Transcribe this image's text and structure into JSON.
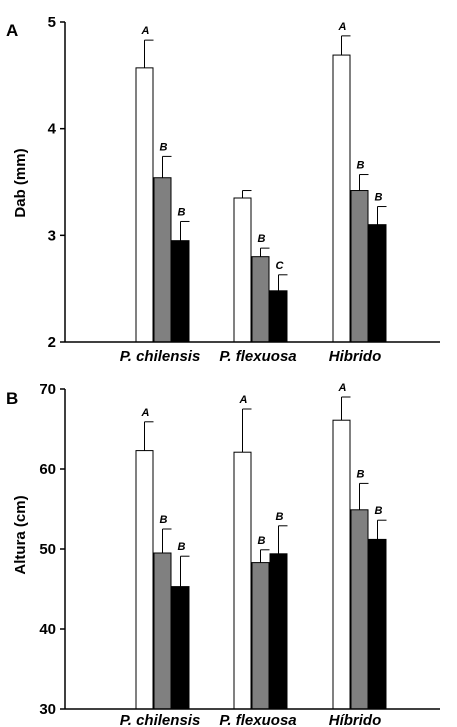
{
  "chart_data": [
    {
      "panel": "A",
      "type": "bar",
      "ylabel": "Dab (mm)",
      "ylim": [
        2,
        5
      ],
      "yticks": [
        "2",
        "3",
        "4",
        "5"
      ],
      "categories": [
        "P. chilensis",
        "P. flexuosa",
        "Hibrido"
      ],
      "series_colors": [
        "#ffffff",
        "#808080",
        "#000000"
      ],
      "series": [
        {
          "values": [
            4.57,
            3.35,
            4.69
          ],
          "errors": [
            0.26,
            0.07,
            0.18
          ],
          "letters": [
            "A",
            "",
            "A"
          ]
        },
        {
          "values": [
            3.54,
            2.8,
            3.42
          ],
          "errors": [
            0.2,
            0.08,
            0.15
          ],
          "letters": [
            "B",
            "B",
            "B"
          ]
        },
        {
          "values": [
            2.95,
            2.48,
            3.1
          ],
          "errors": [
            0.18,
            0.15,
            0.17
          ],
          "letters": [
            "B",
            "C",
            "B"
          ]
        }
      ]
    },
    {
      "panel": "B",
      "type": "bar",
      "ylabel": "Altura (cm)",
      "ylim": [
        30,
        70
      ],
      "yticks": [
        "30",
        "40",
        "50",
        "60",
        "70"
      ],
      "categories": [
        "P. chilensis",
        "P. flexuosa",
        "Híbrido"
      ],
      "series_colors": [
        "#ffffff",
        "#808080",
        "#000000"
      ],
      "series": [
        {
          "values": [
            62.3,
            62.1,
            66.1
          ],
          "errors": [
            3.6,
            5.4,
            2.9
          ],
          "letters": [
            "A",
            "A",
            "A"
          ]
        },
        {
          "values": [
            49.5,
            48.3,
            54.9
          ],
          "errors": [
            3.0,
            1.6,
            3.3
          ],
          "letters": [
            "B",
            "B",
            "B"
          ]
        },
        {
          "values": [
            45.3,
            49.4,
            51.2
          ],
          "errors": [
            3.8,
            3.5,
            2.4
          ],
          "letters": [
            "B",
            "B",
            "B"
          ]
        }
      ]
    }
  ]
}
